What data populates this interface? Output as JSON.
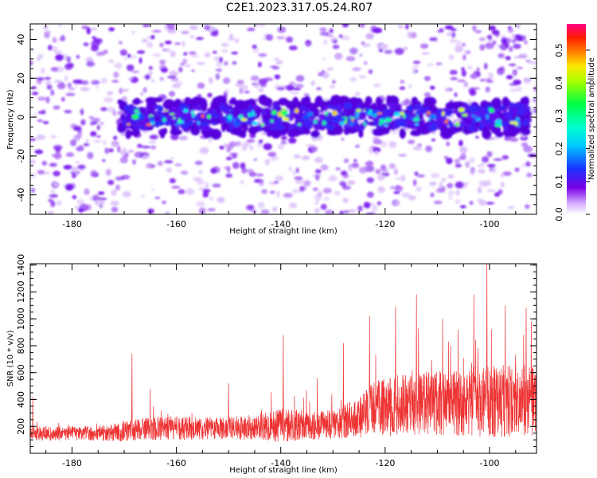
{
  "figure": {
    "title": "C2E1.2023.317.05.24.R07"
  },
  "chart_data": [
    {
      "id": "spectrogram",
      "type": "heatmap",
      "xlabel": "Height of straight line (km)",
      "ylabel": "Frequency (Hz)",
      "xlim": [
        -188,
        -91
      ],
      "ylim": [
        -50,
        48
      ],
      "x_ticks": [
        -180,
        -160,
        -140,
        -120,
        -100
      ],
      "y_ticks": [
        -40,
        -20,
        0,
        20,
        40
      ],
      "x_tick_labels": [
        "-180",
        "-160",
        "-140",
        "-120",
        "-100"
      ],
      "y_tick_labels": [
        "-40",
        "-20",
        "0",
        "20",
        "40"
      ],
      "grid": false,
      "signal_band": {
        "x_start": -171,
        "x_end": -92,
        "center_hz": 0,
        "half_width_hz": 6
      },
      "noise_floor_amplitude": 0.05,
      "band_amplitude_range": [
        0.1,
        0.5
      ],
      "colorbar": {
        "label": "Normalized spectral amplitude",
        "range": [
          0.0,
          0.58
        ],
        "ticks": [
          0.0,
          0.1,
          0.2,
          0.3,
          0.4,
          0.5
        ],
        "tick_labels": [
          "0.0",
          "0.1",
          "0.2",
          "0.3",
          "0.4",
          "0.5"
        ],
        "colormap": [
          "#ffffff",
          "#7a00e6",
          "#1a33ff",
          "#00e6ff",
          "#00ff66",
          "#e6ff00",
          "#ff4400",
          "#ff0077"
        ]
      }
    },
    {
      "id": "snr",
      "type": "line",
      "xlabel": "Height of straight line (km)",
      "ylabel": "SNR (10 * v/v)",
      "xlim": [
        -188,
        -91
      ],
      "ylim": [
        0,
        1410
      ],
      "x_ticks": [
        -180,
        -160,
        -140,
        -120,
        -100
      ],
      "y_ticks": [
        200,
        400,
        600,
        800,
        1000,
        1200,
        1400
      ],
      "x_tick_labels": [
        "-180",
        "-160",
        "-140",
        "-120",
        "-100"
      ],
      "y_tick_labels": [
        "200",
        "400",
        "600",
        "800",
        "1000",
        "1200",
        "1400"
      ],
      "grid": false,
      "series": [
        {
          "color": "#ee3333",
          "envelope": {
            "x": [
              -188,
              -175,
              -170,
              -165,
              -160,
              -150,
              -145,
              -140,
              -135,
              -130,
              -125,
              -122,
              -115,
              -110,
              -105,
              -100,
              -95,
              -91
            ],
            "baseline": [
              140,
              140,
              150,
              170,
              170,
              175,
              175,
              190,
              190,
              200,
              240,
              300,
              330,
              330,
              340,
              350,
              350,
              350
            ],
            "spread": [
              110,
              110,
              150,
              180,
              180,
              160,
              200,
              250,
              220,
              220,
              300,
              420,
              480,
              480,
              500,
              550,
              540,
              520
            ]
          },
          "peaks": [
            {
              "x": -187.5,
              "y": 420
            },
            {
              "x": -168.5,
              "y": 740
            },
            {
              "x": -165,
              "y": 480
            },
            {
              "x": -150,
              "y": 520
            },
            {
              "x": -139.5,
              "y": 880
            },
            {
              "x": -133,
              "y": 560
            },
            {
              "x": -128,
              "y": 820
            },
            {
              "x": -123,
              "y": 1020
            },
            {
              "x": -118,
              "y": 1090
            },
            {
              "x": -114,
              "y": 1180
            },
            {
              "x": -109,
              "y": 1000
            },
            {
              "x": -106,
              "y": 920
            },
            {
              "x": -103,
              "y": 1180
            },
            {
              "x": -100.5,
              "y": 1410
            },
            {
              "x": -97,
              "y": 1100
            },
            {
              "x": -93,
              "y": 1080
            },
            {
              "x": -92,
              "y": 980
            }
          ]
        }
      ]
    }
  ]
}
